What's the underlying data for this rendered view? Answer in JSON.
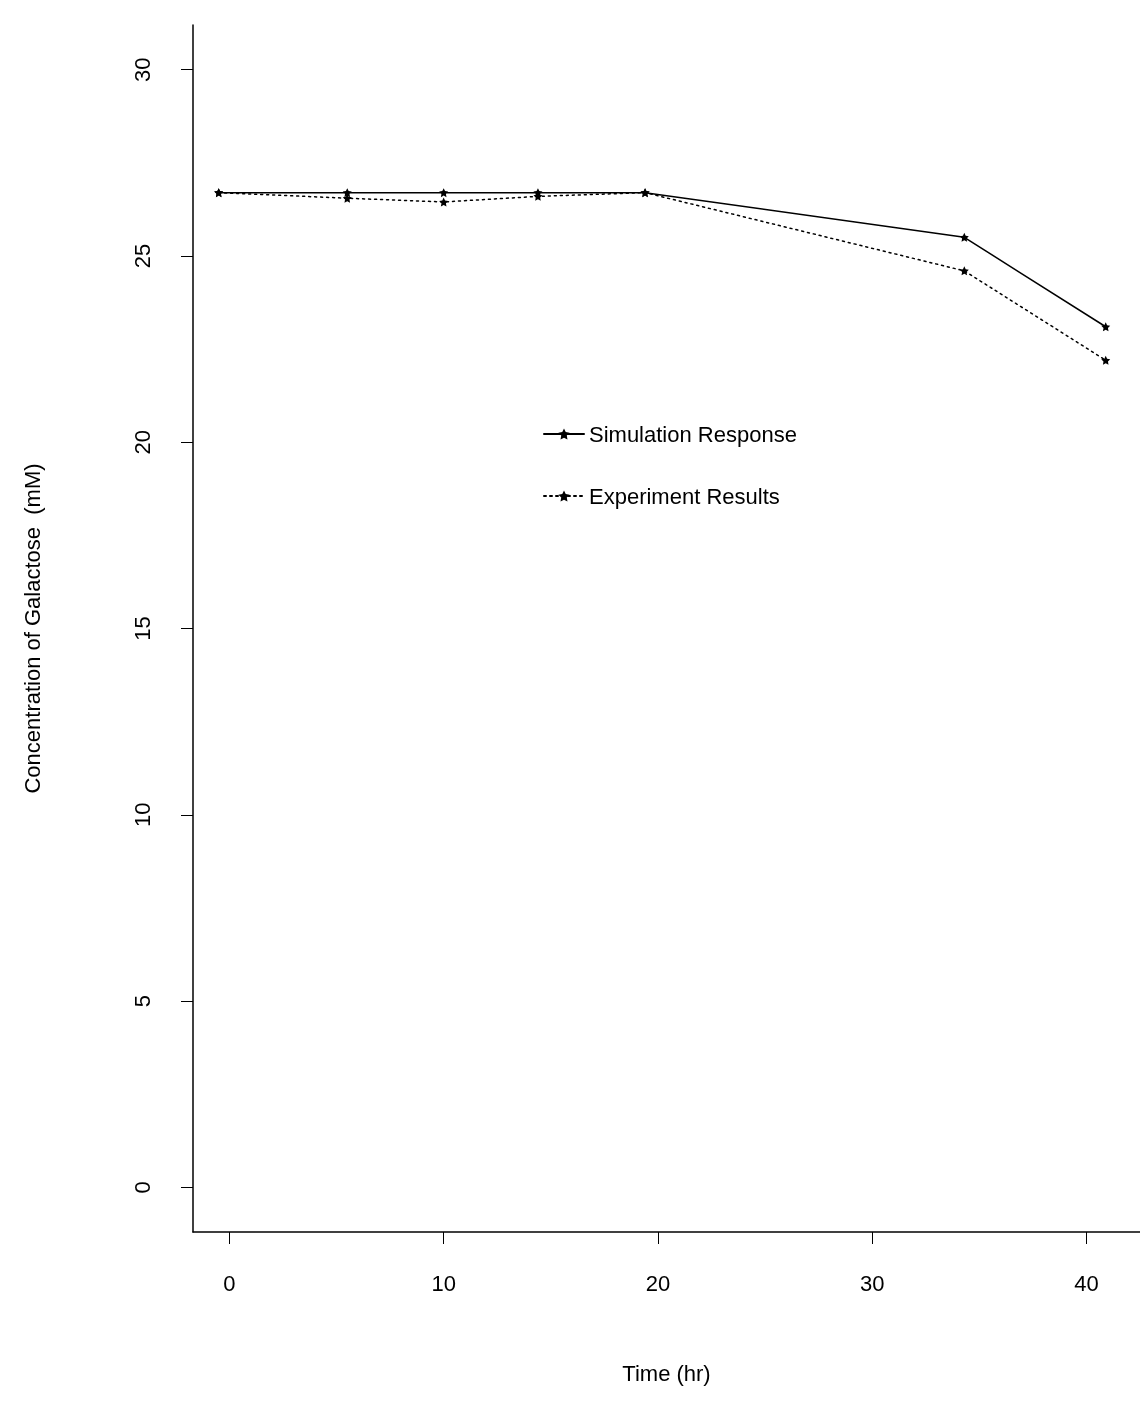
{
  "chart_data": {
    "type": "line",
    "xlabel": "Time (hr)",
    "ylabel": "Concentration of Galactose  (mM)",
    "x": [
      -0.5,
      5.5,
      10,
      14.4,
      19.4,
      34.3,
      40.9
    ],
    "series": [
      {
        "name": "Simulation Response",
        "color": "#000000",
        "line_style": "solid",
        "values": [
          26.7,
          26.7,
          26.7,
          26.7,
          26.7,
          25.5,
          23.1
        ]
      },
      {
        "name": "Experiment Results",
        "color": "#000000",
        "line_style": "dotted",
        "values": [
          26.7,
          26.55,
          26.45,
          26.6,
          26.7,
          24.6,
          22.2
        ]
      }
    ],
    "xlim": [
      -1.7,
      42.5
    ],
    "xticks": [
      0,
      10,
      20,
      30,
      40
    ],
    "ylim": [
      -1.2,
      31.2
    ],
    "yticks": [
      0,
      5,
      10,
      15,
      20,
      25,
      30
    ],
    "marker": "star",
    "grid": false,
    "legend": "top right"
  }
}
